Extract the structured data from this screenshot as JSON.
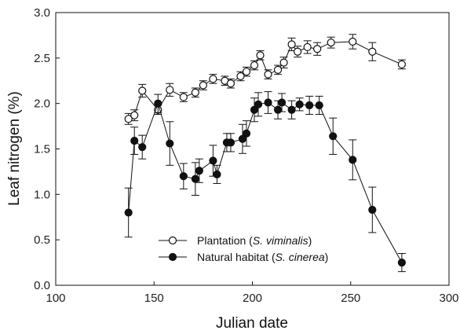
{
  "chart_data": {
    "type": "line",
    "xlabel": "Julian date",
    "ylabel": "Leaf nitrogen (%)",
    "xlim": [
      100,
      300
    ],
    "ylim": [
      0.0,
      3.0
    ],
    "x_ticks": [
      "100",
      "150",
      "200",
      "250",
      "300"
    ],
    "y_ticks": [
      "0.0",
      "0.5",
      "1.0",
      "1.5",
      "2.0",
      "2.5",
      "3.0"
    ],
    "grid": false,
    "legend_position": "bottom-left",
    "series": [
      {
        "name": "Plantation",
        "name_italic": "S. viminalis",
        "marker": "open-circle",
        "color": "#111111",
        "x": [
          137,
          140,
          144,
          152,
          158,
          165,
          171,
          175,
          180,
          186,
          189,
          194,
          197,
          201,
          204,
          208,
          213,
          216,
          220,
          223,
          228,
          233,
          240,
          251,
          261,
          276
        ],
        "y": [
          1.83,
          1.87,
          2.14,
          1.93,
          2.15,
          2.07,
          2.12,
          2.2,
          2.27,
          2.25,
          2.22,
          2.3,
          2.35,
          2.42,
          2.53,
          2.32,
          2.37,
          2.45,
          2.65,
          2.57,
          2.62,
          2.6,
          2.67,
          2.68,
          2.57,
          2.43
        ],
        "error": [
          0.06,
          0.06,
          0.07,
          0.05,
          0.07,
          0.05,
          0.05,
          0.05,
          0.05,
          0.05,
          0.05,
          0.05,
          0.05,
          0.05,
          0.05,
          0.05,
          0.05,
          0.06,
          0.07,
          0.06,
          0.07,
          0.07,
          0.06,
          0.08,
          0.1,
          0.05
        ]
      },
      {
        "name": "Natural habitat",
        "name_italic": "S. cinerea",
        "marker": "filled-circle",
        "color": "#111111",
        "x": [
          137,
          140,
          144,
          152,
          158,
          165,
          171,
          173,
          180,
          182,
          187,
          189,
          195,
          197,
          201,
          203,
          208,
          213,
          215,
          220,
          224,
          229,
          234,
          241,
          251,
          261,
          276
        ],
        "y": [
          0.8,
          1.59,
          1.52,
          2.0,
          1.56,
          1.2,
          1.17,
          1.26,
          1.37,
          1.22,
          1.57,
          1.57,
          1.61,
          1.67,
          1.93,
          1.99,
          2.01,
          1.93,
          2.01,
          1.93,
          1.99,
          1.98,
          1.98,
          1.64,
          1.38,
          0.83,
          0.25
        ],
        "error": [
          0.27,
          0.15,
          0.13,
          0.1,
          0.24,
          0.14,
          0.18,
          0.13,
          0.17,
          0.1,
          0.1,
          0.1,
          0.16,
          0.14,
          0.13,
          0.13,
          0.12,
          0.1,
          0.1,
          0.1,
          0.07,
          0.1,
          0.1,
          0.2,
          0.22,
          0.25,
          0.1
        ]
      }
    ]
  }
}
